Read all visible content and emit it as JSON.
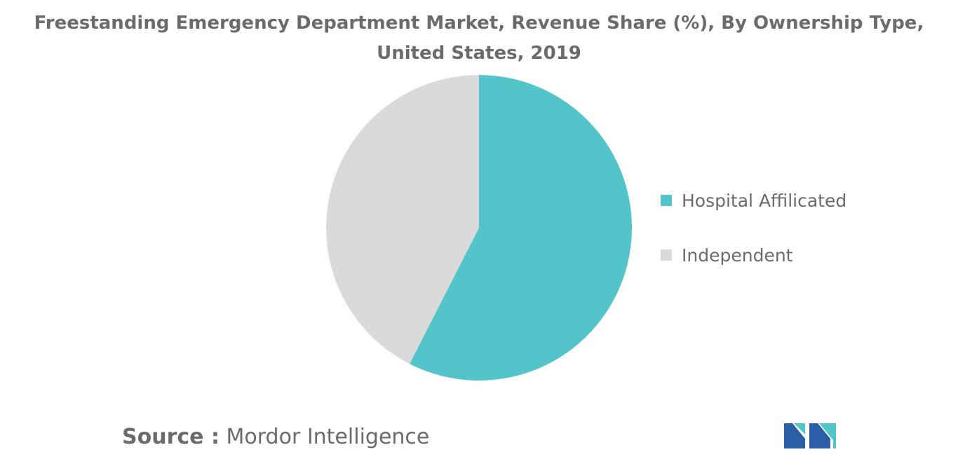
{
  "title": {
    "line1": "Freestanding Emergency Department Market, Revenue Share (%), By Ownership Type,",
    "line2": "United States, 2019"
  },
  "chart_data": {
    "type": "pie",
    "title": "Freestanding Emergency Department Market, Revenue Share (%), By Ownership Type, United States, 2019",
    "unit": "%",
    "start_angle_deg": 0,
    "direction": "clockwise",
    "slices": [
      {
        "label": "Hospital Affilicated",
        "value": 57.5,
        "color": "#52c4ca"
      },
      {
        "label": "Independent",
        "value": 42.5,
        "color": "#dadada"
      }
    ],
    "legend": {
      "position": "right",
      "items": [
        "Hospital Affilicated",
        "Independent"
      ]
    }
  },
  "source": {
    "label": "Source :",
    "value": "Mordor Intelligence"
  },
  "logo": {
    "colors": [
      "#2a5fa8",
      "#52c4ca"
    ]
  }
}
